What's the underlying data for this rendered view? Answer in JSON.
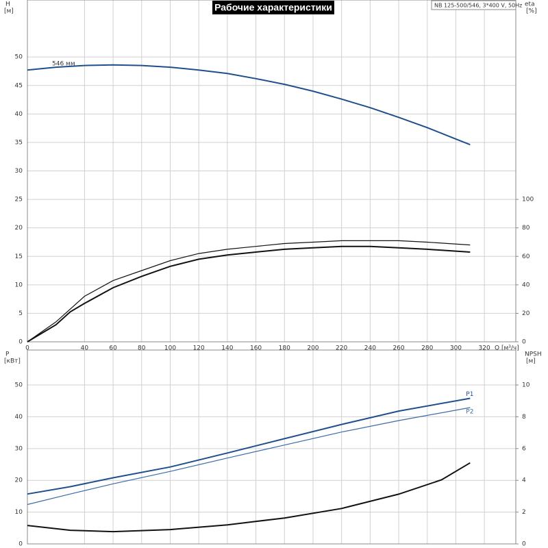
{
  "chart_data": [
    {
      "type": "line",
      "title": "Рабочие характеристики",
      "subtitle": "NB 125-500/546, 3*400 V, 50Hz",
      "y_label": "H",
      "y_unit": "[м]",
      "y2_label": "eta",
      "y2_unit": "[%]",
      "x_label": "Q [м³/ч]",
      "annotation": "546 мм",
      "xlim": [
        0,
        342
      ],
      "xticks": [
        0,
        40,
        60,
        80,
        100,
        120,
        140,
        160,
        180,
        200,
        220,
        240,
        260,
        280,
        300,
        320
      ],
      "ylim": [
        0,
        60
      ],
      "yticks": [
        0,
        5,
        10,
        15,
        20,
        25,
        30,
        35,
        40,
        45,
        50
      ],
      "y2lim": [
        0,
        240
      ],
      "y2ticks": [
        0,
        20,
        40,
        60,
        80,
        100
      ],
      "grid": true,
      "series": [
        {
          "color": "#1f4e8c",
          "width": 2,
          "x": [
            0,
            20,
            40,
            60,
            80,
            100,
            120,
            140,
            160,
            180,
            200,
            220,
            240,
            260,
            280,
            300,
            310
          ],
          "values": [
            47.7,
            48.2,
            48.5,
            48.6,
            48.5,
            48.2,
            47.7,
            47.1,
            46.2,
            45.2,
            44.0,
            42.6,
            41.1,
            39.4,
            37.6,
            35.6,
            34.6
          ]
        },
        {
          "color": "#111111",
          "width": 1.2,
          "axis": "y2",
          "x": [
            0,
            20,
            40,
            60,
            80,
            100,
            120,
            140,
            160,
            180,
            200,
            220,
            240,
            260,
            280,
            310
          ],
          "values": [
            0,
            14,
            32,
            43,
            50,
            57,
            62,
            65,
            67,
            69,
            70,
            71,
            71,
            71,
            70,
            68
          ]
        },
        {
          "color": "#111111",
          "width": 2,
          "axis": "y2",
          "x": [
            0,
            20,
            30,
            40,
            60,
            80,
            100,
            120,
            140,
            160,
            180,
            200,
            220,
            240,
            260,
            280,
            310
          ],
          "values": [
            0,
            12,
            21,
            27,
            38,
            46,
            53,
            58,
            61,
            63,
            65,
            66,
            67,
            67,
            66,
            65,
            63
          ]
        }
      ]
    },
    {
      "type": "line",
      "y_label": "P",
      "y_unit": "[кВт]",
      "y2_label": "NPSH",
      "y2_unit": "[м]",
      "xlim": [
        0,
        342
      ],
      "ylim": [
        0,
        61
      ],
      "yticks": [
        0,
        10,
        20,
        30,
        40,
        50
      ],
      "y2lim": [
        0,
        12.2
      ],
      "y2ticks": [
        0,
        2,
        4,
        6,
        8,
        10
      ],
      "grid": true,
      "series": [
        {
          "name": "P1",
          "color": "#1f4e8c",
          "width": 2,
          "x": [
            0,
            30,
            60,
            100,
            140,
            180,
            220,
            260,
            310
          ],
          "values": [
            15.7,
            18.0,
            20.8,
            24.2,
            28.6,
            33.1,
            37.6,
            41.8,
            45.8
          ]
        },
        {
          "name": "P2",
          "color": "#3a6aa8",
          "width": 1.2,
          "x": [
            0,
            30,
            60,
            100,
            140,
            180,
            220,
            260,
            310
          ],
          "values": [
            12.4,
            15.7,
            18.9,
            22.8,
            27.0,
            31.1,
            35.2,
            38.8,
            42.9
          ]
        },
        {
          "color": "#111111",
          "width": 2,
          "axis": "y2",
          "x": [
            0,
            30,
            60,
            100,
            140,
            180,
            220,
            260,
            290,
            310
          ],
          "values": [
            1.16,
            0.86,
            0.77,
            0.9,
            1.2,
            1.63,
            2.23,
            3.13,
            4.03,
            5.1
          ]
        }
      ]
    }
  ]
}
